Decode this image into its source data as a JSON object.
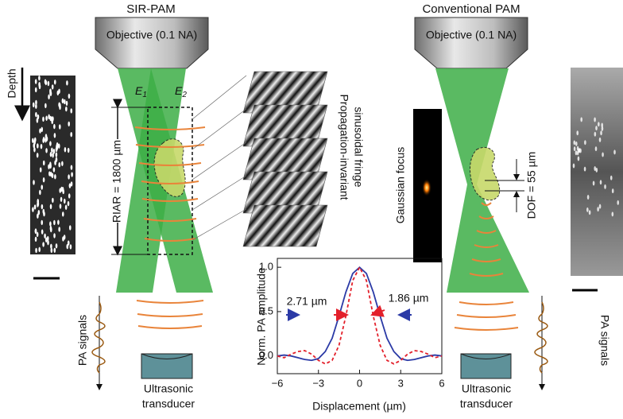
{
  "diagram": {
    "left": {
      "title": "SIR-PAM",
      "objective": "Objective (0.1 NA)",
      "depth": "Depth",
      "beam1": {
        "letter": "E",
        "sub": "1"
      },
      "beam2": {
        "letter": "E",
        "sub": "2"
      },
      "riar": "RIAR = 1800 µm",
      "fringe": [
        "Propagation-invariant",
        "sinusoidal fringe"
      ],
      "signals": "PA signals",
      "transducer": [
        "Ultrasonic",
        "transducer"
      ]
    },
    "right": {
      "title": "Conventional PAM",
      "objective": "Objective (0.1 NA)",
      "focus": "Gaussian focus",
      "dof": "DOF = 55 µm",
      "signals": "PA signals",
      "transducer": [
        "Ultrasonic",
        "transducer"
      ]
    }
  },
  "chart_data": {
    "type": "line",
    "xlabel": "Displacement (µm)",
    "ylabel": "Norm. PA amplitude",
    "x": [
      -6,
      -5.5,
      -5,
      -4.5,
      -4,
      -3.5,
      -3,
      -2.5,
      -2,
      -1.5,
      -1,
      -0.5,
      0,
      0.5,
      1,
      1.5,
      2,
      2.5,
      3,
      3.5,
      4,
      4.5,
      5,
      5.5,
      6
    ],
    "series": [
      {
        "color": "#2b3aa6",
        "style": "solid",
        "values": [
          0,
          0.01,
          0,
          -0.02,
          -0.04,
          -0.05,
          -0.03,
          0.05,
          0.2,
          0.45,
          0.72,
          0.93,
          1,
          0.93,
          0.72,
          0.45,
          0.2,
          0.05,
          -0.03,
          -0.05,
          -0.04,
          -0.02,
          0,
          0.01,
          0
        ]
      },
      {
        "color": "#e3202b",
        "style": "dashed",
        "values": [
          0,
          -0.02,
          0.02,
          0.05,
          0.06,
          0.02,
          -0.05,
          -0.09,
          -0.05,
          0.12,
          0.45,
          0.85,
          1,
          0.85,
          0.45,
          0.12,
          -0.05,
          -0.09,
          -0.05,
          0.02,
          0.06,
          0.05,
          0.02,
          -0.02,
          0
        ]
      }
    ],
    "annotations": [
      {
        "text": "2.71 µm",
        "color": "#2b3aa6"
      },
      {
        "text": "1.86 µm",
        "color": "#e3202b"
      }
    ],
    "xlim": [
      -6,
      6
    ],
    "ylim": [
      -0.2,
      1.1
    ],
    "xticks": [
      {
        "value": -6,
        "label": "−6"
      },
      {
        "value": -3,
        "label": "−3"
      },
      0,
      3,
      6
    ],
    "yticks": [
      {
        "value": 0,
        "label": "0.0"
      },
      {
        "value": 0.5,
        "label": "0.5"
      },
      {
        "value": 1,
        "label": "1.0"
      }
    ]
  }
}
